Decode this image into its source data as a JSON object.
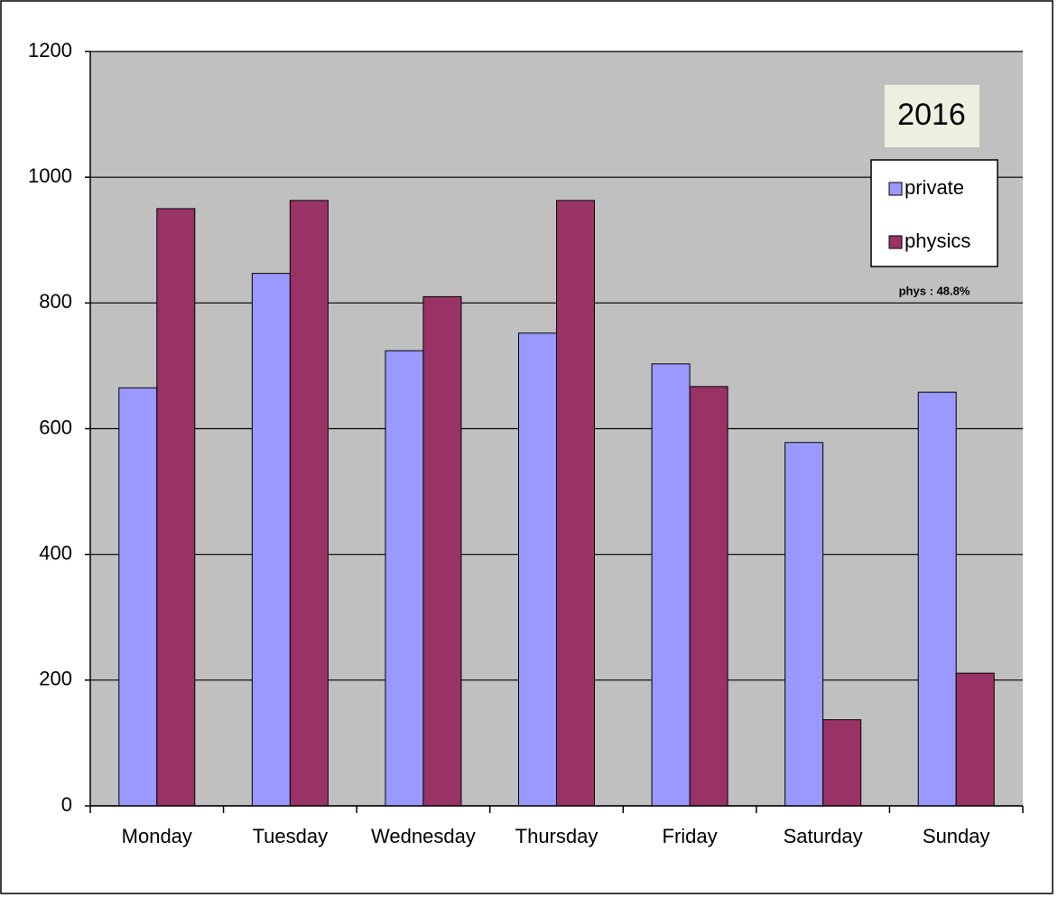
{
  "chart_data": {
    "type": "bar",
    "title": "2016",
    "annotation": "phys : 48.8%",
    "categories": [
      "Monday",
      "Tuesday",
      "Wednesday",
      "Thursday",
      "Friday",
      "Saturday",
      "Sunday"
    ],
    "series": [
      {
        "name": "private",
        "color": "#9999ff",
        "values": [
          665,
          847,
          724,
          752,
          703,
          578,
          658
        ]
      },
      {
        "name": "physics",
        "color": "#993366",
        "values": [
          950,
          963,
          810,
          963,
          667,
          137,
          211
        ]
      }
    ],
    "ylim": [
      0,
      1200
    ],
    "yticks": [
      0,
      200,
      400,
      600,
      800,
      1000,
      1200
    ],
    "grid": true
  }
}
